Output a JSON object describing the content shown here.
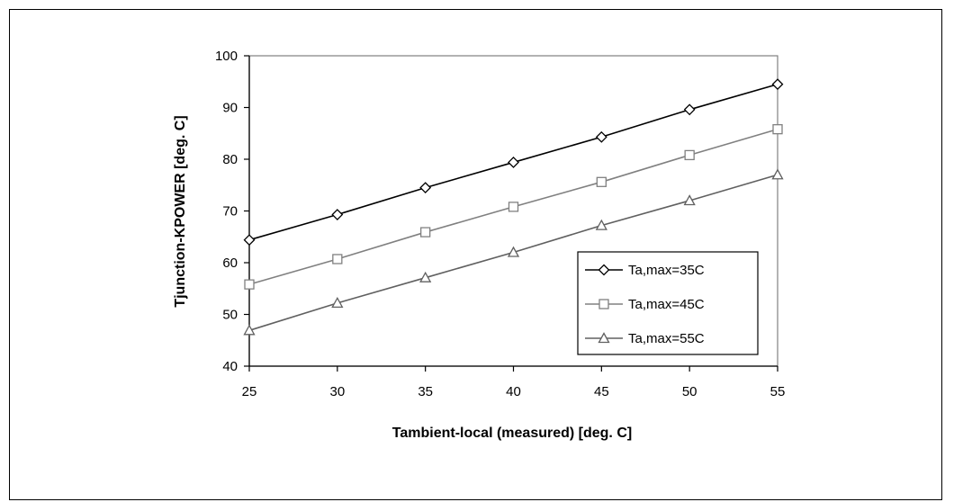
{
  "chart_data": {
    "type": "line",
    "title": "",
    "xlabel": "Tambient-local (measured) [deg. C]",
    "ylabel": "Tjunction-KPOWER [deg. C]",
    "x": [
      25,
      30,
      35,
      40,
      45,
      50,
      55
    ],
    "xlim": [
      25,
      55
    ],
    "ylim": [
      40,
      100
    ],
    "x_ticks": [
      "25",
      "30",
      "35",
      "40",
      "45",
      "50",
      "55"
    ],
    "y_ticks": [
      "40",
      "50",
      "60",
      "70",
      "80",
      "90",
      "100"
    ],
    "grid": false,
    "legend_position": "right",
    "series": [
      {
        "name": "Ta,max=35C",
        "marker": "diamond",
        "color": "#000000",
        "values": [
          64.4,
          69.3,
          74.5,
          79.4,
          84.3,
          89.6,
          94.5
        ]
      },
      {
        "name": "Ta,max=45C",
        "marker": "square",
        "color": "#808080",
        "values": [
          55.8,
          60.7,
          65.9,
          70.8,
          75.6,
          80.8,
          85.8
        ]
      },
      {
        "name": "Ta,max=55C",
        "marker": "triangle",
        "color": "#606060",
        "values": [
          46.9,
          52.2,
          57.1,
          62.0,
          67.2,
          72.0,
          77.0
        ]
      }
    ]
  }
}
